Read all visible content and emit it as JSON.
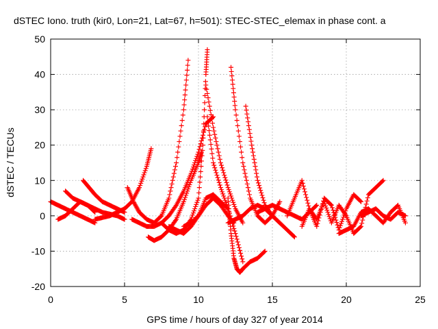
{
  "chart_data": {
    "type": "scatter",
    "title": "dSTEC Iono. truth (kir0, Lon=21, Lat=67, h=501): STEC-STEC_elemax in phase cont. a",
    "xlabel": "GPS time / hours of day 327 of year 2014",
    "ylabel": "dSTEC  / TECUs",
    "xlim": [
      0,
      25
    ],
    "ylim": [
      -20,
      50
    ],
    "x_ticks": [
      0,
      5,
      10,
      15,
      20,
      25
    ],
    "y_ticks": [
      -20,
      -10,
      0,
      10,
      20,
      30,
      40,
      50
    ],
    "x_tick_labels": [
      "0",
      "5",
      "10",
      "15",
      "20",
      "25"
    ],
    "y_tick_labels": [
      "-20",
      "-10",
      "0",
      "10",
      "20",
      "30",
      "40",
      "50"
    ],
    "grid": true,
    "legend": "none",
    "marker": "plus",
    "color": "#ff0000",
    "series": [
      {
        "x": [
          0.0,
          0.5,
          1.0,
          1.5,
          2.0,
          2.5,
          3.0
        ],
        "y": [
          4,
          3,
          2,
          1,
          0,
          -1,
          -2
        ]
      },
      {
        "x": [
          0.5,
          1.0,
          1.5,
          2.0,
          2.5,
          3.0
        ],
        "y": [
          -1,
          0,
          2,
          4,
          3,
          1
        ]
      },
      {
        "x": [
          1.0,
          1.5,
          2.0,
          2.5,
          3.0,
          3.5,
          4.0,
          4.5,
          5.0
        ],
        "y": [
          7,
          5,
          4,
          3,
          2,
          1,
          0.5,
          0,
          -1
        ]
      },
      {
        "x": [
          2.2,
          2.6,
          3.0,
          3.5,
          4.0,
          4.5,
          5.0
        ],
        "y": [
          10,
          8,
          6,
          4,
          3,
          2,
          1
        ]
      },
      {
        "x": [
          3.0,
          3.5,
          4.0,
          4.5,
          5.0,
          5.5,
          6.0,
          6.5,
          6.8
        ],
        "y": [
          -1,
          -0.5,
          0,
          1,
          2,
          4,
          8,
          14,
          19
        ]
      },
      {
        "x": [
          5.2,
          5.6,
          6.0,
          6.5,
          7.0,
          7.5,
          8.0,
          8.5,
          9.0,
          9.3
        ],
        "y": [
          8,
          4,
          1,
          -1,
          -2,
          0,
          5,
          15,
          30,
          44
        ]
      },
      {
        "x": [
          5.5,
          6.0,
          6.5,
          7.0,
          7.5,
          8.0,
          8.5,
          9.0,
          9.5,
          10.0,
          10.5,
          11.0
        ],
        "y": [
          -1,
          -2,
          -3,
          -3,
          -2,
          0,
          3,
          7,
          12,
          18,
          26,
          28
        ]
      },
      {
        "x": [
          6.6,
          7.0,
          7.5,
          8.0,
          8.5,
          9.0,
          9.5,
          10.0,
          10.2
        ],
        "y": [
          -6,
          -7,
          -6,
          -4,
          -1,
          4,
          10,
          15,
          18
        ]
      },
      {
        "x": [
          7.5,
          8.0,
          8.5,
          9.0,
          9.5,
          10.0,
          10.3,
          10.5,
          10.6
        ],
        "y": [
          -2,
          -4,
          -5,
          -4,
          -1,
          5,
          20,
          40,
          47
        ]
      },
      {
        "x": [
          8.0,
          8.5,
          9.0,
          9.5,
          10.0,
          10.5,
          11.0,
          11.5,
          12.0
        ],
        "y": [
          -3,
          -4,
          -5,
          -3,
          0,
          5,
          6,
          4,
          2
        ]
      },
      {
        "x": [
          10.5,
          11.0,
          11.5,
          12.0,
          12.5,
          13.0
        ],
        "y": [
          37,
          25,
          15,
          8,
          2,
          -2
        ]
      },
      {
        "x": [
          9.0,
          9.5,
          10.0,
          10.5,
          11.0,
          11.5,
          12.0,
          12.4
        ],
        "y": [
          -3,
          -2,
          0,
          3,
          5,
          3,
          0,
          -2
        ]
      },
      {
        "x": [
          10.6,
          11.0,
          11.5,
          12.0,
          12.5,
          13.0
        ],
        "y": [
          28,
          15,
          8,
          2,
          -5,
          -13
        ]
      },
      {
        "x": [
          12.0,
          12.2,
          12.4,
          12.6,
          12.8,
          13.0,
          13.5,
          14.0,
          14.5
        ],
        "y": [
          5,
          -5,
          -12,
          -15,
          -16,
          -15,
          -13,
          -12,
          -10
        ]
      },
      {
        "x": [
          12.2,
          12.5,
          13.0,
          13.5,
          14.0,
          14.5,
          15.0,
          15.5
        ],
        "y": [
          42,
          30,
          15,
          5,
          0,
          -2,
          0,
          4
        ]
      },
      {
        "x": [
          12.0,
          12.5,
          13.0,
          13.5,
          14.0,
          14.5,
          15.0,
          15.5,
          16.0,
          16.5
        ],
        "y": [
          -2,
          -1,
          0,
          2,
          3,
          2,
          0,
          -2,
          -4,
          -6
        ]
      },
      {
        "x": [
          13.2,
          13.6,
          14.0,
          14.5,
          15.0,
          15.5
        ],
        "y": [
          31,
          20,
          10,
          3,
          0,
          -2
        ]
      },
      {
        "x": [
          14.0,
          14.5,
          15.0,
          15.5,
          16.0,
          16.5,
          17.0,
          17.5,
          18.0
        ],
        "y": [
          1,
          2,
          3,
          2,
          1,
          0,
          -1,
          1,
          3
        ]
      },
      {
        "x": [
          16.0,
          16.5,
          17.0,
          17.5,
          18.0,
          18.5,
          19.0,
          19.5,
          20.0,
          20.5,
          21.0
        ],
        "y": [
          0,
          5,
          10,
          2,
          -3,
          5,
          3,
          -4,
          2,
          6,
          4
        ]
      },
      {
        "x": [
          17.0,
          17.5,
          18.0,
          18.5,
          19.0,
          19.5,
          20.0,
          20.5,
          21.0,
          21.5,
          22.0,
          22.5
        ],
        "y": [
          -3,
          2,
          -1,
          4,
          -2,
          3,
          0,
          -5,
          -3,
          6,
          8,
          10
        ]
      },
      {
        "x": [
          19.5,
          20.0,
          20.5,
          21.0,
          21.5,
          22.0,
          22.5,
          23.0,
          23.5,
          24.0
        ],
        "y": [
          -5,
          -4,
          -3,
          1,
          2,
          0,
          -2,
          1,
          3,
          -2
        ]
      },
      {
        "x": [
          21.0,
          21.5,
          22.0,
          22.5,
          23.0,
          23.5,
          24.0
        ],
        "y": [
          0,
          1,
          2,
          0,
          -1,
          1,
          0
        ]
      }
    ]
  }
}
